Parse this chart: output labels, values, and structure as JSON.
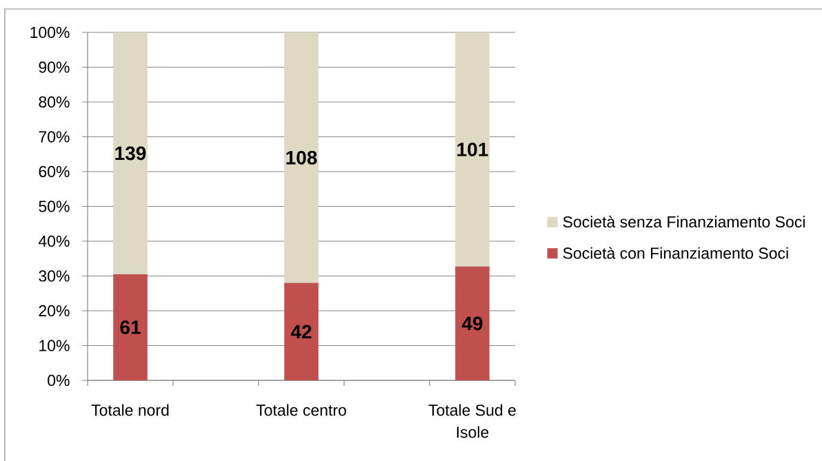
{
  "chart_data": {
    "type": "bar",
    "stacked": true,
    "categories": [
      "Totale nord",
      null,
      "Totale centro",
      null,
      "Totale Sud e Isole"
    ],
    "series": [
      {
        "name": "Società con Finanziamento Soci",
        "color": "#c0504d",
        "values": [
          30.5,
          null,
          28,
          null,
          32.7
        ]
      },
      {
        "name": "Società senza Finanziamento Soci",
        "color": "#ddd9c3",
        "values": [
          69.5,
          null,
          72,
          null,
          67.3
        ]
      }
    ],
    "annotations": [
      "139",
      "61",
      "108",
      "42",
      "101",
      "49"
    ],
    "ylim": [
      0,
      100
    ],
    "yticks": [
      {
        "value": 0,
        "label": "0%"
      },
      {
        "value": 10,
        "label": "10%"
      },
      {
        "value": 20,
        "label": "20%"
      },
      {
        "value": 30,
        "label": "30%"
      },
      {
        "value": 40,
        "label": "40%"
      },
      {
        "value": 50,
        "label": "50%"
      },
      {
        "value": 60,
        "label": "60%"
      },
      {
        "value": 70,
        "label": "70%"
      },
      {
        "value": 80,
        "label": "80%"
      },
      {
        "value": 90,
        "label": "90%"
      },
      {
        "value": 100,
        "label": "100%"
      }
    ],
    "grid": "y",
    "legend": "right"
  }
}
